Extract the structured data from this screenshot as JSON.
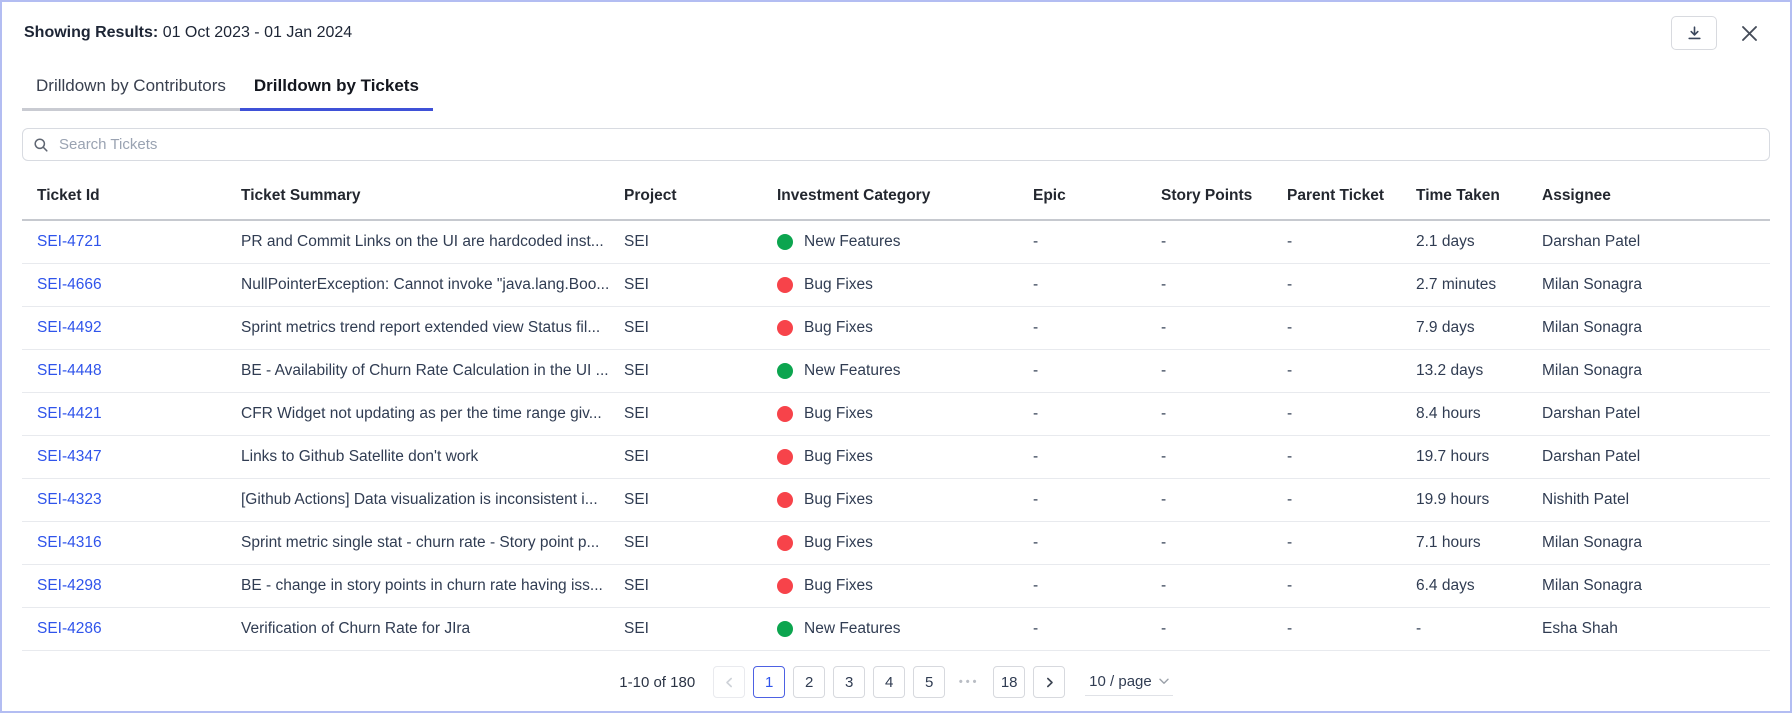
{
  "header": {
    "label": "Showing Results:",
    "date_range": "01 Oct 2023 - 01 Jan 2024"
  },
  "icons": {
    "download": "download-icon",
    "close": "close-icon",
    "search": "search-icon",
    "prev": "chevron-left-icon",
    "next": "chevron-right-icon",
    "page_size_caret": "chevron-down-icon"
  },
  "tabs": [
    {
      "label": "Drilldown by Contributors",
      "active": false
    },
    {
      "label": "Drilldown by Tickets",
      "active": true
    }
  ],
  "search": {
    "placeholder": "Search Tickets"
  },
  "table": {
    "columns": [
      "Ticket Id",
      "Ticket Summary",
      "Project",
      "Investment Category",
      "Epic",
      "Story Points",
      "Parent Ticket",
      "Time Taken",
      "Assignee"
    ],
    "rows": [
      {
        "id": "SEI-4721",
        "summary": "PR and Commit Links on the UI are hardcoded inst...",
        "project": "SEI",
        "category": "New Features",
        "category_color": "#0ca54f",
        "epic": "-",
        "story_points": "-",
        "parent_ticket": "-",
        "time_taken": "2.1 days",
        "assignee": "Darshan Patel"
      },
      {
        "id": "SEI-4666",
        "summary": "NullPointerException: Cannot invoke \"java.lang.Boo...",
        "project": "SEI",
        "category": "Bug Fixes",
        "category_color": "#f7434a",
        "epic": "-",
        "story_points": "-",
        "parent_ticket": "-",
        "time_taken": "2.7 minutes",
        "assignee": "Milan Sonagra"
      },
      {
        "id": "SEI-4492",
        "summary": "Sprint metrics trend report extended view Status fil...",
        "project": "SEI",
        "category": "Bug Fixes",
        "category_color": "#f7434a",
        "epic": "-",
        "story_points": "-",
        "parent_ticket": "-",
        "time_taken": "7.9 days",
        "assignee": "Milan Sonagra"
      },
      {
        "id": "SEI-4448",
        "summary": "BE - Availability of Churn Rate Calculation in the UI ...",
        "project": "SEI",
        "category": "New Features",
        "category_color": "#0ca54f",
        "epic": "-",
        "story_points": "-",
        "parent_ticket": "-",
        "time_taken": "13.2 days",
        "assignee": "Milan Sonagra"
      },
      {
        "id": "SEI-4421",
        "summary": "CFR Widget not updating as per the time range giv...",
        "project": "SEI",
        "category": "Bug Fixes",
        "category_color": "#f7434a",
        "epic": "-",
        "story_points": "-",
        "parent_ticket": "-",
        "time_taken": "8.4 hours",
        "assignee": "Darshan Patel"
      },
      {
        "id": "SEI-4347",
        "summary": "Links to Github Satellite don't work",
        "project": "SEI",
        "category": "Bug Fixes",
        "category_color": "#f7434a",
        "epic": "-",
        "story_points": "-",
        "parent_ticket": "-",
        "time_taken": "19.7 hours",
        "assignee": "Darshan Patel"
      },
      {
        "id": "SEI-4323",
        "summary": "[Github Actions] Data visualization is inconsistent i...",
        "project": "SEI",
        "category": "Bug Fixes",
        "category_color": "#f7434a",
        "epic": "-",
        "story_points": "-",
        "parent_ticket": "-",
        "time_taken": "19.9 hours",
        "assignee": "Nishith Patel"
      },
      {
        "id": "SEI-4316",
        "summary": "Sprint metric single stat - churn rate - Story point p...",
        "project": "SEI",
        "category": "Bug Fixes",
        "category_color": "#f7434a",
        "epic": "-",
        "story_points": "-",
        "parent_ticket": "-",
        "time_taken": "7.1 hours",
        "assignee": "Milan Sonagra"
      },
      {
        "id": "SEI-4298",
        "summary": "BE - change in story points in churn rate having iss...",
        "project": "SEI",
        "category": "Bug Fixes",
        "category_color": "#f7434a",
        "epic": "-",
        "story_points": "-",
        "parent_ticket": "-",
        "time_taken": "6.4 days",
        "assignee": "Milan Sonagra"
      },
      {
        "id": "SEI-4286",
        "summary": "Verification of Churn Rate for JIra",
        "project": "SEI",
        "category": "New Features",
        "category_color": "#0ca54f",
        "epic": "-",
        "story_points": "-",
        "parent_ticket": "-",
        "time_taken": "-",
        "assignee": "Esha Shah"
      }
    ]
  },
  "pagination": {
    "range_text": "1-10 of 180",
    "pages": [
      "1",
      "2",
      "3",
      "4",
      "5",
      "•••",
      "18"
    ],
    "active_page": "1",
    "page_size": "10 / page"
  },
  "colors": {
    "accent_tab_underline": "#3f51d7",
    "link_blue": "#2f54eb",
    "category_green": "#0ca54f",
    "category_red": "#f7434a",
    "panel_border": "#b3bdf2"
  }
}
